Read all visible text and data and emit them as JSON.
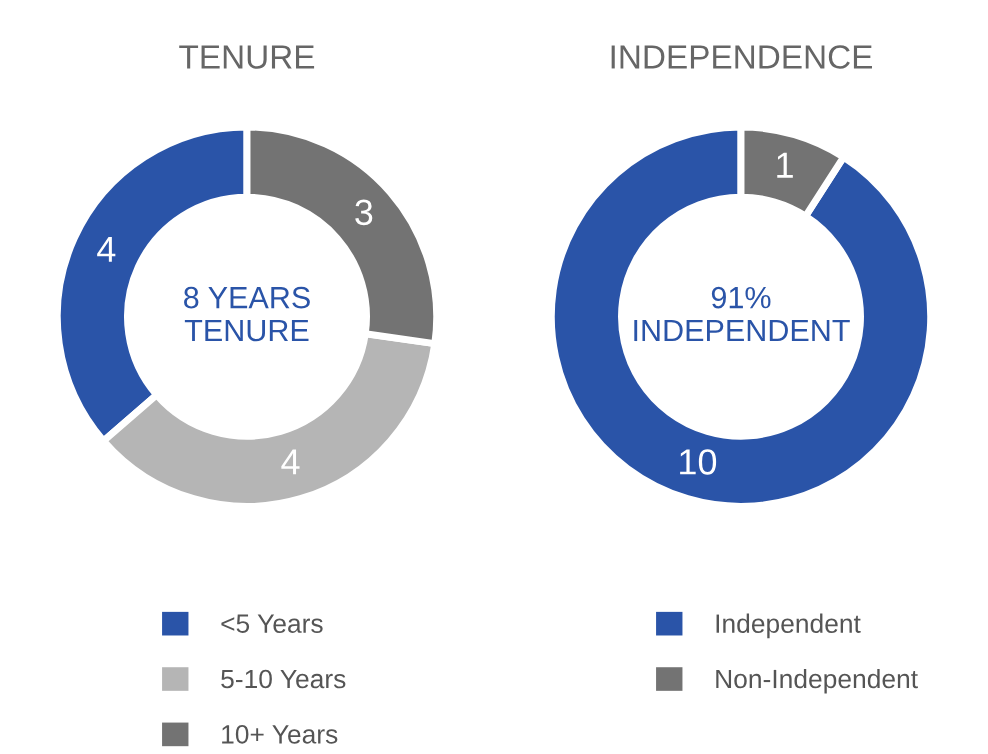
{
  "chart_data": [
    {
      "type": "donut",
      "title": "TENURE",
      "categories": [
        "<5 Years",
        "5-10 Years",
        "10+ Years"
      ],
      "values": [
        4,
        4,
        3
      ],
      "colors": [
        "#2a54a8",
        "#b5b5b5",
        "#737373"
      ],
      "data_labels": true,
      "legend": "bottom",
      "annotations": [
        "8 YEARS\nTENURE"
      ]
    },
    {
      "type": "donut",
      "title": "INDEPENDENCE",
      "categories": [
        "Independent",
        "Non-Independent"
      ],
      "values": [
        10,
        1
      ],
      "colors": [
        "#2a54a8",
        "#737373"
      ],
      "data_labels": true,
      "legend": "bottom",
      "annotations": [
        "91%\nINDEPENDENT"
      ]
    }
  ]
}
